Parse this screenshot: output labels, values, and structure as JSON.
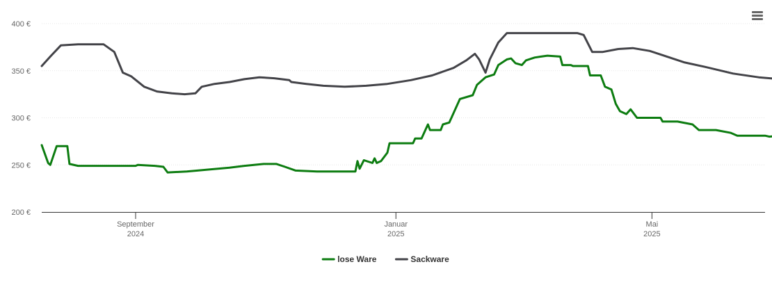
{
  "chart_data": {
    "type": "line",
    "x_axis": {
      "type": "date",
      "range": [
        "2024-07-19",
        "2025-06-23"
      ],
      "ticks": [
        {
          "date": "2024-09-01",
          "month": "September",
          "year": "2024"
        },
        {
          "date": "2025-01-01",
          "month": "Januar",
          "year": "2025"
        },
        {
          "date": "2025-05-01",
          "month": "Mai",
          "year": "2025"
        }
      ]
    },
    "y_axis": {
      "range": [
        200,
        400
      ],
      "ticks": [
        {
          "value": 200,
          "label": "200 €"
        },
        {
          "value": 250,
          "label": "250 €"
        },
        {
          "value": 300,
          "label": "300 €"
        },
        {
          "value": 350,
          "label": "350 €"
        },
        {
          "value": 400,
          "label": "400 €"
        }
      ],
      "grid": true
    },
    "legend": {
      "position": "bottom-center"
    },
    "series": [
      {
        "name": "lose Ware",
        "color": "#0c7c10",
        "points": [
          [
            "2024-07-19",
            271
          ],
          [
            "2024-07-22",
            252
          ],
          [
            "2024-07-23",
            250
          ],
          [
            "2024-07-26",
            270
          ],
          [
            "2024-07-31",
            270
          ],
          [
            "2024-08-01",
            251
          ],
          [
            "2024-08-05",
            249
          ],
          [
            "2024-08-15",
            249
          ],
          [
            "2024-08-30",
            249
          ],
          [
            "2024-09-01",
            249
          ],
          [
            "2024-09-02",
            250
          ],
          [
            "2024-09-10",
            249
          ],
          [
            "2024-09-14",
            248
          ],
          [
            "2024-09-16",
            242
          ],
          [
            "2024-09-25",
            243
          ],
          [
            "2024-10-05",
            245
          ],
          [
            "2024-10-15",
            247
          ],
          [
            "2024-10-22",
            249
          ],
          [
            "2024-10-31",
            251
          ],
          [
            "2024-11-06",
            251
          ],
          [
            "2024-11-10",
            248
          ],
          [
            "2024-11-15",
            244
          ],
          [
            "2024-11-25",
            243
          ],
          [
            "2024-12-05",
            243
          ],
          [
            "2024-12-13",
            243
          ],
          [
            "2024-12-14",
            254
          ],
          [
            "2024-12-15",
            246
          ],
          [
            "2024-12-17",
            255
          ],
          [
            "2024-12-21",
            252
          ],
          [
            "2024-12-22",
            257
          ],
          [
            "2024-12-23",
            252
          ],
          [
            "2024-12-25",
            254
          ],
          [
            "2024-12-28",
            263
          ],
          [
            "2024-12-29",
            273
          ],
          [
            "2025-01-01",
            273
          ],
          [
            "2025-01-09",
            273
          ],
          [
            "2025-01-10",
            278
          ],
          [
            "2025-01-13",
            278
          ],
          [
            "2025-01-16",
            293
          ],
          [
            "2025-01-17",
            287
          ],
          [
            "2025-01-22",
            287
          ],
          [
            "2025-01-23",
            293
          ],
          [
            "2025-01-26",
            295
          ],
          [
            "2025-01-31",
            320
          ],
          [
            "2025-02-06",
            324
          ],
          [
            "2025-02-08",
            335
          ],
          [
            "2025-02-12",
            343
          ],
          [
            "2025-02-16",
            346
          ],
          [
            "2025-02-18",
            356
          ],
          [
            "2025-02-22",
            362
          ],
          [
            "2025-02-24",
            363
          ],
          [
            "2025-02-26",
            358
          ],
          [
            "2025-03-01",
            356
          ],
          [
            "2025-03-03",
            361
          ],
          [
            "2025-03-07",
            364
          ],
          [
            "2025-03-10",
            365
          ],
          [
            "2025-03-13",
            366
          ],
          [
            "2025-03-19",
            365
          ],
          [
            "2025-03-20",
            356
          ],
          [
            "2025-03-24",
            356
          ],
          [
            "2025-03-25",
            355
          ],
          [
            "2025-04-01",
            355
          ],
          [
            "2025-04-02",
            345
          ],
          [
            "2025-04-07",
            345
          ],
          [
            "2025-04-09",
            333
          ],
          [
            "2025-04-12",
            330
          ],
          [
            "2025-04-14",
            315
          ],
          [
            "2025-04-16",
            307
          ],
          [
            "2025-04-19",
            304
          ],
          [
            "2025-04-21",
            309
          ],
          [
            "2025-04-24",
            300
          ],
          [
            "2025-04-28",
            300
          ],
          [
            "2025-05-05",
            300
          ],
          [
            "2025-05-06",
            296
          ],
          [
            "2025-05-13",
            296
          ],
          [
            "2025-05-20",
            293
          ],
          [
            "2025-05-23",
            287
          ],
          [
            "2025-05-31",
            287
          ],
          [
            "2025-06-07",
            284
          ],
          [
            "2025-06-10",
            281
          ],
          [
            "2025-06-15",
            281
          ],
          [
            "2025-06-23",
            281
          ],
          [
            "2025-06-25",
            280
          ],
          [
            "2025-06-30",
            281
          ]
        ]
      },
      {
        "name": "Sackware",
        "color": "#434348",
        "points": [
          [
            "2024-07-19",
            355
          ],
          [
            "2024-07-23",
            365
          ],
          [
            "2024-07-28",
            377
          ],
          [
            "2024-08-05",
            378
          ],
          [
            "2024-08-17",
            378
          ],
          [
            "2024-08-22",
            370
          ],
          [
            "2024-08-26",
            348
          ],
          [
            "2024-08-30",
            344
          ],
          [
            "2024-09-05",
            333
          ],
          [
            "2024-09-11",
            328
          ],
          [
            "2024-09-18",
            326
          ],
          [
            "2024-09-24",
            325
          ],
          [
            "2024-09-29",
            326
          ],
          [
            "2024-10-02",
            333
          ],
          [
            "2024-10-08",
            336
          ],
          [
            "2024-10-15",
            338
          ],
          [
            "2024-10-22",
            341
          ],
          [
            "2024-10-29",
            343
          ],
          [
            "2024-11-05",
            342
          ],
          [
            "2024-11-12",
            340
          ],
          [
            "2024-11-13",
            338
          ],
          [
            "2024-11-20",
            336
          ],
          [
            "2024-11-28",
            334
          ],
          [
            "2024-12-08",
            333
          ],
          [
            "2024-12-18",
            334
          ],
          [
            "2024-12-28",
            336
          ],
          [
            "2025-01-08",
            340
          ],
          [
            "2025-01-18",
            345
          ],
          [
            "2025-01-28",
            353
          ],
          [
            "2025-02-03",
            361
          ],
          [
            "2025-02-07",
            368
          ],
          [
            "2025-02-09",
            362
          ],
          [
            "2025-02-12",
            348
          ],
          [
            "2025-02-14",
            362
          ],
          [
            "2025-02-18",
            380
          ],
          [
            "2025-02-22",
            390
          ],
          [
            "2025-03-05",
            390
          ],
          [
            "2025-03-15",
            390
          ],
          [
            "2025-03-27",
            390
          ],
          [
            "2025-03-30",
            388
          ],
          [
            "2025-04-03",
            370
          ],
          [
            "2025-04-08",
            370
          ],
          [
            "2025-04-15",
            373
          ],
          [
            "2025-04-22",
            374
          ],
          [
            "2025-04-30",
            371
          ],
          [
            "2025-05-08",
            365
          ],
          [
            "2025-05-16",
            359
          ],
          [
            "2025-05-26",
            354
          ],
          [
            "2025-06-08",
            347
          ],
          [
            "2025-06-20",
            343
          ],
          [
            "2025-06-30",
            341
          ]
        ]
      }
    ]
  },
  "ui": {
    "menu_icon": "hamburger-menu-icon",
    "background_color": "#ffffff",
    "grid_color": "#e6e6e6",
    "axis_color": "#333333",
    "label_color": "#666666"
  }
}
